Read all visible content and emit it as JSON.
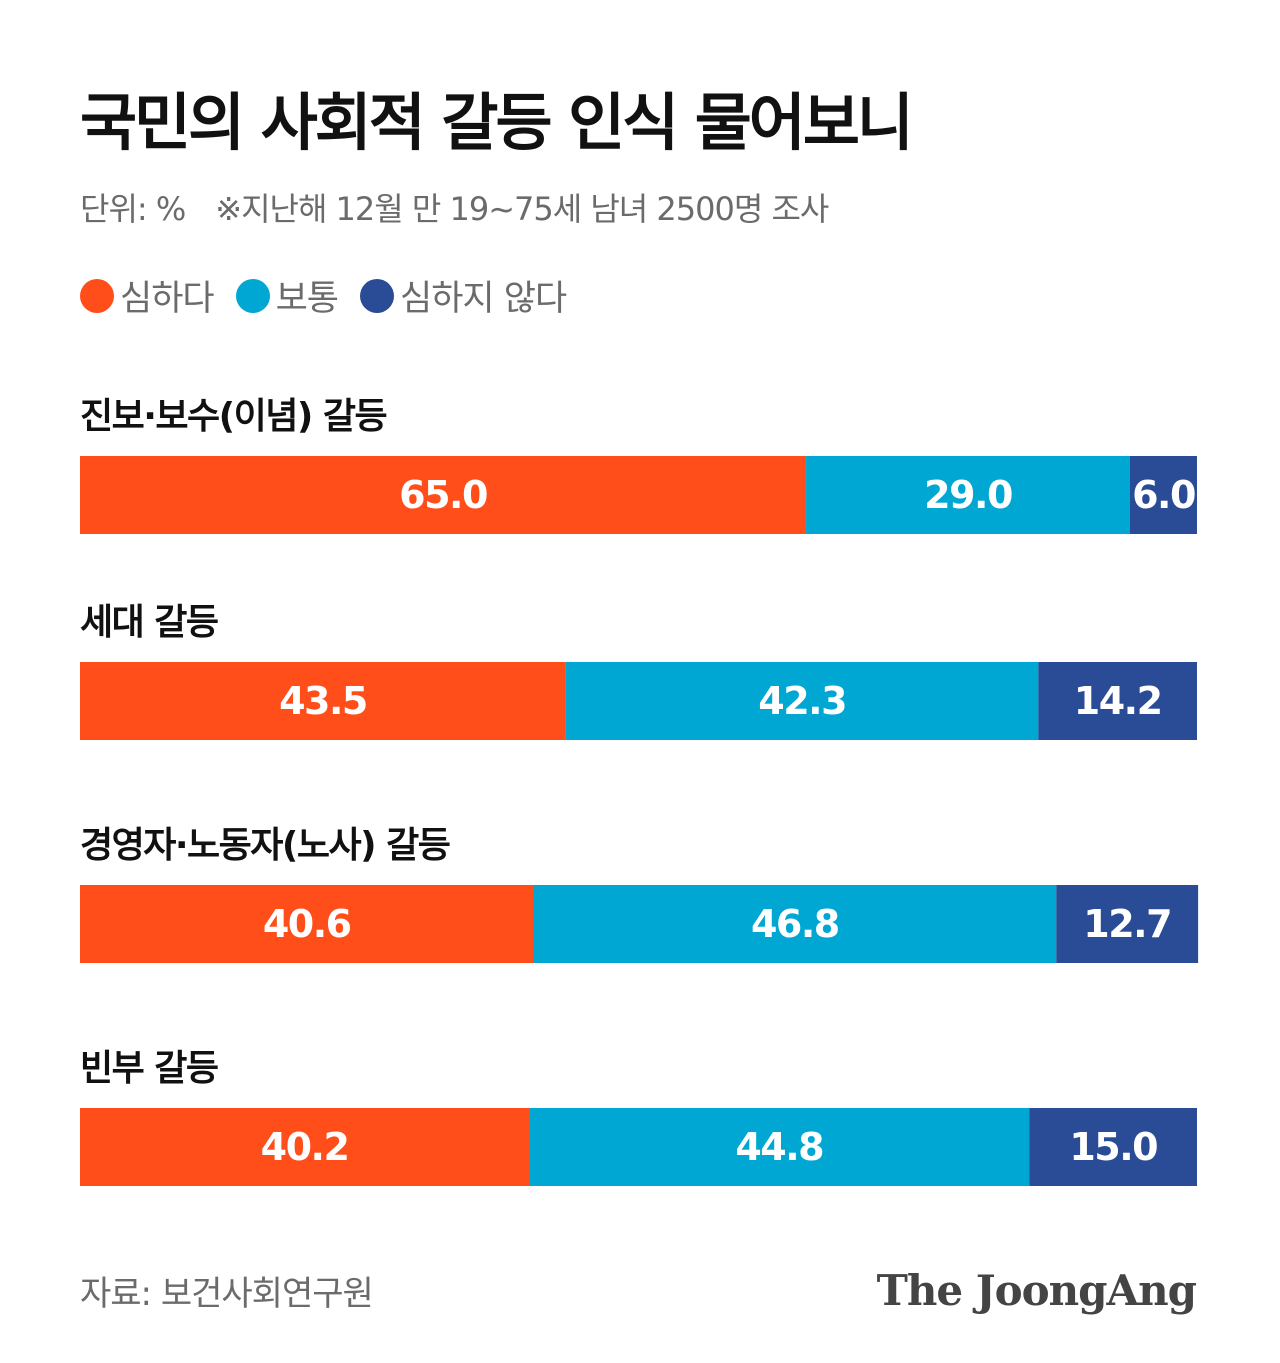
{
  "header": {
    "title": "국민의 사회적 갈등 인식 물어보니",
    "unit": "단위: %",
    "note": "※지난해 12월 만 19~75세 남녀 2500명 조사"
  },
  "legend": [
    {
      "label": "심하다",
      "color": "#ff4e1a"
    },
    {
      "label": "보통",
      "color": "#00a7d3"
    },
    {
      "label": "심하지 않다",
      "color": "#2a4b95"
    }
  ],
  "chart_data": {
    "type": "bar",
    "orientation": "horizontal",
    "stacked": true,
    "categories": [
      "진보·보수(이념) 갈등",
      "세대 갈등",
      "경영자·노동자(노사) 갈등",
      "빈부 갈등"
    ],
    "series": [
      {
        "name": "심하다",
        "color": "#ff4e1a",
        "values": [
          65.0,
          43.5,
          40.6,
          40.2
        ]
      },
      {
        "name": "보통",
        "color": "#00a7d3",
        "values": [
          29.0,
          42.3,
          46.8,
          44.8
        ]
      },
      {
        "name": "심하지 않다",
        "color": "#2a4b95",
        "values": [
          6.0,
          14.2,
          12.7,
          15.0
        ]
      }
    ],
    "data_labels": [
      [
        "65.0",
        "29.0",
        "6.0"
      ],
      [
        "43.5",
        "42.3",
        "14.2"
      ],
      [
        "40.6",
        "46.8",
        "12.7"
      ],
      [
        "40.2",
        "44.8",
        "15.0"
      ]
    ],
    "xlim": [
      0,
      100
    ],
    "grid": false,
    "legend_position": "top-left"
  },
  "footer": {
    "source": "자료: 보건사회연구원",
    "logo_text": "The JoongAng"
  }
}
